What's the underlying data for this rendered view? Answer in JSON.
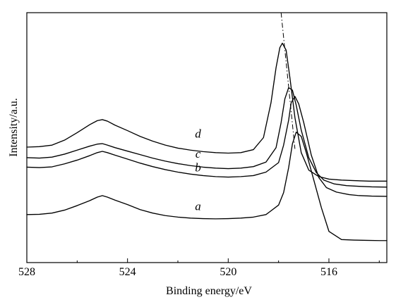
{
  "chart_data": {
    "type": "line",
    "xlabel": "Binding energy/eV",
    "ylabel": "Intensity/a.u.",
    "xlim": [
      528,
      513.7
    ],
    "x_reversed": true,
    "ylim": [
      0,
      1
    ],
    "x_ticks": [
      528,
      524,
      520,
      516
    ],
    "x_minor_ticks": [
      526,
      522,
      518,
      514
    ],
    "y_ticks_shown": false,
    "grid": false,
    "series": [
      {
        "name": "a",
        "x": [
          528,
          527.5,
          527,
          526.5,
          526,
          525.5,
          525.2,
          525,
          524.8,
          524.5,
          524,
          523.5,
          523,
          522.5,
          522,
          521.5,
          521,
          520.5,
          520,
          519.5,
          519,
          518.5,
          518,
          517.8,
          517.6,
          517.45,
          517.3,
          517.1,
          516.9,
          516.6,
          516.3,
          516,
          515.5,
          515,
          514.5,
          514,
          513.7
        ],
        "y": [
          0.192,
          0.193,
          0.198,
          0.21,
          0.228,
          0.248,
          0.262,
          0.268,
          0.262,
          0.25,
          0.232,
          0.212,
          0.198,
          0.188,
          0.182,
          0.178,
          0.176,
          0.175,
          0.176,
          0.178,
          0.182,
          0.192,
          0.23,
          0.28,
          0.38,
          0.475,
          0.522,
          0.505,
          0.44,
          0.33,
          0.22,
          0.125,
          0.092,
          0.09,
          0.089,
          0.088,
          0.088
        ]
      },
      {
        "name": "b",
        "x": [
          528,
          527.5,
          527,
          526.5,
          526,
          525.5,
          525.2,
          525,
          524.8,
          524.5,
          524,
          523.5,
          523,
          522.5,
          522,
          521.5,
          521,
          520.5,
          520,
          519.5,
          519,
          518.5,
          518,
          517.8,
          517.6,
          517.5,
          517.35,
          517.2,
          517,
          516.7,
          516.4,
          516.1,
          515.7,
          515.2,
          514.8,
          514.3,
          513.7
        ],
        "y": [
          0.382,
          0.38,
          0.383,
          0.395,
          0.41,
          0.428,
          0.44,
          0.445,
          0.44,
          0.43,
          0.414,
          0.398,
          0.384,
          0.372,
          0.362,
          0.354,
          0.348,
          0.344,
          0.342,
          0.344,
          0.348,
          0.362,
          0.4,
          0.47,
          0.57,
          0.64,
          0.665,
          0.635,
          0.56,
          0.43,
          0.34,
          0.3,
          0.282,
          0.272,
          0.268,
          0.266,
          0.265
        ]
      },
      {
        "name": "c",
        "x": [
          528,
          527.5,
          527,
          526.5,
          526,
          525.5,
          525.2,
          525,
          524.8,
          524.5,
          524,
          523.5,
          523,
          522.5,
          522,
          521.5,
          521,
          520.5,
          520,
          519.5,
          519,
          518.5,
          518.1,
          517.9,
          517.75,
          517.6,
          517.45,
          517.3,
          517.1,
          516.8,
          516.5,
          516.2,
          515.8,
          515.3,
          514.8,
          514.3,
          513.7
        ],
        "y": [
          0.42,
          0.418,
          0.422,
          0.434,
          0.45,
          0.466,
          0.474,
          0.476,
          0.47,
          0.46,
          0.446,
          0.432,
          0.418,
          0.406,
          0.396,
          0.388,
          0.382,
          0.378,
          0.376,
          0.378,
          0.384,
          0.402,
          0.46,
          0.56,
          0.655,
          0.7,
          0.69,
          0.63,
          0.53,
          0.42,
          0.36,
          0.33,
          0.315,
          0.308,
          0.305,
          0.303,
          0.302
        ]
      },
      {
        "name": "d",
        "x": [
          528,
          527.5,
          527,
          526.5,
          526,
          525.5,
          525.2,
          525,
          524.8,
          524.5,
          524,
          523.5,
          523,
          522.5,
          522,
          521.5,
          521,
          520.5,
          520,
          519.5,
          519,
          518.6,
          518.3,
          518.1,
          517.95,
          517.85,
          517.7,
          517.55,
          517.35,
          517.1,
          516.8,
          516.4,
          516,
          515.5,
          515,
          514.4,
          513.7
        ],
        "y": [
          0.462,
          0.464,
          0.47,
          0.49,
          0.52,
          0.552,
          0.568,
          0.572,
          0.566,
          0.55,
          0.528,
          0.505,
          0.486,
          0.47,
          0.458,
          0.45,
          0.444,
          0.44,
          0.438,
          0.44,
          0.452,
          0.5,
          0.64,
          0.78,
          0.86,
          0.878,
          0.85,
          0.74,
          0.58,
          0.44,
          0.37,
          0.344,
          0.334,
          0.33,
          0.328,
          0.326,
          0.326
        ]
      }
    ],
    "series_label_positions": [
      {
        "name": "a",
        "x": 521.2,
        "y": 0.21
      },
      {
        "name": "b",
        "x": 521.2,
        "y": 0.365
      },
      {
        "name": "c",
        "x": 521.2,
        "y": 0.42
      },
      {
        "name": "d",
        "x": 521.2,
        "y": 0.5
      }
    ],
    "guide_line": {
      "style": "dash-dot",
      "x": [
        517.9,
        517.35
      ],
      "y": [
        1.0,
        0.455
      ]
    }
  }
}
